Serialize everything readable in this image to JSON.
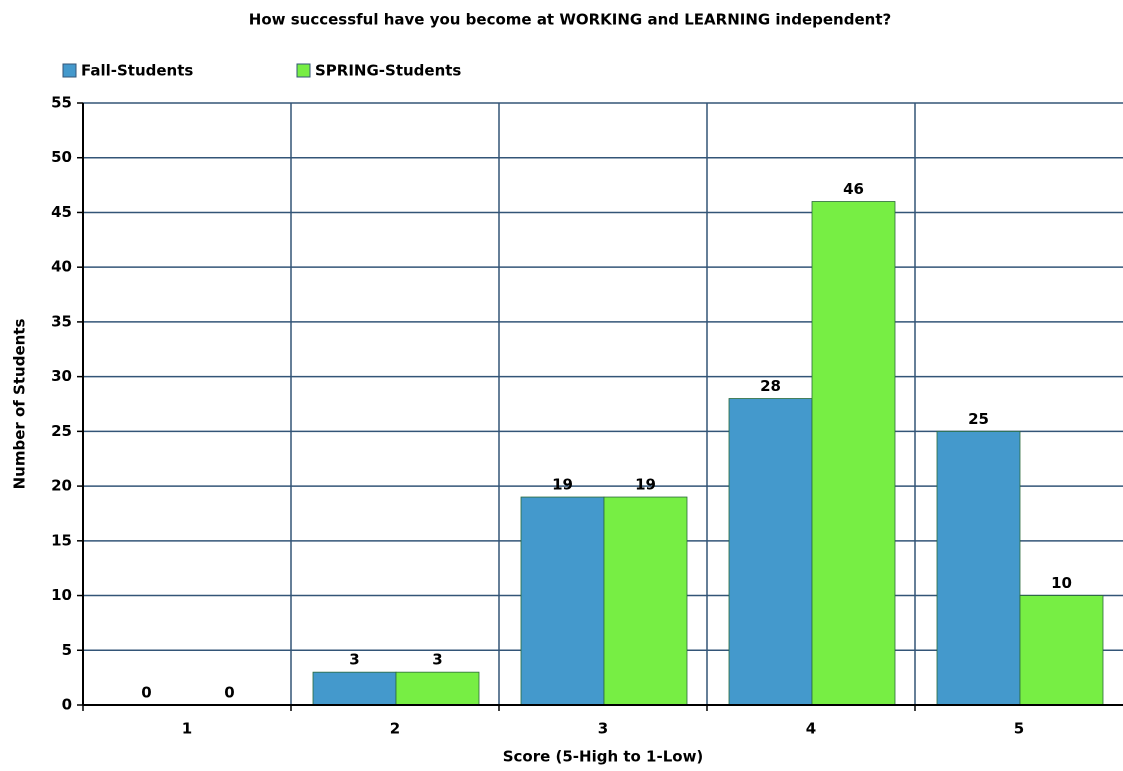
{
  "chart_data": {
    "type": "bar",
    "title": "How successful have you become at WORKING and LEARNING independent?",
    "x_label": "Score  (5-High to 1-Low)",
    "y_label": "Number of Students",
    "categories": [
      "1",
      "2",
      "3",
      "4",
      "5"
    ],
    "series": [
      {
        "name": "Fall-Students",
        "color": "#4499cc",
        "values": [
          0,
          3,
          19,
          28,
          25
        ]
      },
      {
        "name": "SPRING-Students",
        "color": "#77ee44",
        "values": [
          0,
          3,
          19,
          46,
          10
        ]
      }
    ],
    "ylim": [
      0,
      55
    ],
    "yticks": [
      0,
      5,
      10,
      15,
      20,
      25,
      30,
      35,
      40,
      45,
      50,
      55
    ],
    "grid": true,
    "legend": "top-left"
  }
}
